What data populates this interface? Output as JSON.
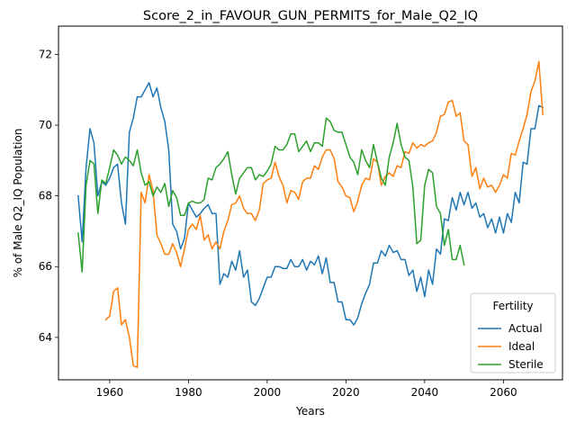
{
  "chart_data": {
    "type": "line",
    "title": "Score_2_in_FAVOUR_GUN_PERMITS_for_Male_Q2_IQ",
    "xlabel": "Years",
    "ylabel": "% of Male Q2_IQ Population",
    "xlim": [
      1947,
      2075
    ],
    "ylim": [
      62.8,
      72.8
    ],
    "xticks": [
      1960,
      1980,
      2000,
      2020,
      2040,
      2060
    ],
    "yticks": [
      64,
      66,
      68,
      70,
      72
    ],
    "grid": false,
    "legend": {
      "title": "Fertility",
      "placement": "lower-right"
    },
    "series": [
      {
        "name": "Actual",
        "color": "#1f77b4",
        "x": [
          1952,
          1953,
          1954,
          1955,
          1956,
          1957,
          1958,
          1959,
          1960,
          1961,
          1962,
          1963,
          1964,
          1965,
          1966,
          1967,
          1968,
          1969,
          1970,
          1971,
          1972,
          1973,
          1974,
          1975,
          1976,
          1977,
          1978,
          1979,
          1980,
          1981,
          1982,
          1983,
          1984,
          1985,
          1986,
          1987,
          1988,
          1989,
          1990,
          1991,
          1992,
          1993,
          1994,
          1995,
          1996,
          1997,
          1998,
          1999,
          2000,
          2001,
          2002,
          2003,
          2004,
          2005,
          2006,
          2007,
          2008,
          2009,
          2010,
          2011,
          2012,
          2013,
          2014,
          2015,
          2016,
          2017,
          2018,
          2019,
          2020,
          2021,
          2022,
          2023,
          2024,
          2025,
          2026,
          2027,
          2028,
          2029,
          2030,
          2031,
          2032,
          2033,
          2034,
          2035,
          2036,
          2037,
          2038,
          2039,
          2040,
          2041,
          2042,
          2043,
          2044,
          2045,
          2046,
          2047,
          2048,
          2049,
          2050,
          2051,
          2052,
          2053,
          2054,
          2055,
          2056,
          2057,
          2058,
          2059,
          2060,
          2061,
          2062,
          2063,
          2064,
          2065,
          2066,
          2067,
          2068,
          2069,
          2070
        ],
        "values": [
          68.0,
          66.7,
          68.8,
          69.9,
          69.5,
          68.0,
          68.4,
          68.3,
          68.5,
          68.8,
          68.9,
          67.8,
          67.2,
          69.8,
          70.2,
          70.8,
          70.8,
          71.0,
          71.2,
          70.8,
          71.05,
          70.5,
          70.1,
          69.3,
          67.2,
          67.0,
          66.5,
          66.8,
          67.8,
          67.6,
          67.4,
          67.5,
          67.65,
          67.75,
          67.5,
          67.5,
          65.5,
          65.8,
          65.7,
          66.15,
          65.9,
          66.45,
          65.7,
          65.9,
          65.0,
          64.9,
          65.1,
          65.4,
          65.7,
          65.7,
          66.0,
          66.0,
          65.95,
          65.95,
          66.2,
          66.0,
          66.0,
          66.2,
          65.9,
          66.15,
          66.05,
          66.3,
          65.8,
          66.25,
          65.55,
          65.55,
          65.0,
          65.0,
          64.5,
          64.5,
          64.35,
          64.55,
          64.95,
          65.25,
          65.5,
          66.1,
          66.1,
          66.45,
          66.3,
          66.6,
          66.4,
          66.45,
          66.2,
          66.2,
          65.75,
          65.9,
          65.3,
          65.7,
          65.15,
          65.9,
          65.5,
          66.5,
          66.35,
          67.35,
          67.3,
          67.95,
          67.6,
          68.1,
          67.75,
          68.1,
          67.65,
          67.8,
          67.4,
          67.5,
          67.1,
          67.35,
          66.95,
          67.4,
          66.95,
          67.5,
          67.25,
          68.1,
          67.8,
          68.95,
          68.9,
          69.9,
          69.9,
          70.55,
          70.5
        ]
      },
      {
        "name": "Ideal",
        "color": "#ff7f0e",
        "x": [
          1959,
          1960,
          1961,
          1962,
          1963,
          1964,
          1965,
          1966,
          1967,
          1968,
          1969,
          1970,
          1971,
          1972,
          1973,
          1974,
          1975,
          1976,
          1977,
          1978,
          1979,
          1980,
          1981,
          1982,
          1983,
          1984,
          1985,
          1986,
          1987,
          1988,
          1989,
          1990,
          1991,
          1992,
          1993,
          1994,
          1995,
          1996,
          1997,
          1998,
          1999,
          2000,
          2001,
          2002,
          2003,
          2004,
          2005,
          2006,
          2007,
          2008,
          2009,
          2010,
          2011,
          2012,
          2013,
          2014,
          2015,
          2016,
          2017,
          2018,
          2019,
          2020,
          2021,
          2022,
          2023,
          2024,
          2025,
          2026,
          2027,
          2028,
          2029,
          2030,
          2031,
          2032,
          2033,
          2034,
          2035,
          2036,
          2037,
          2038,
          2039,
          2040,
          2041,
          2042,
          2043,
          2044,
          2045,
          2046,
          2047,
          2048,
          2049,
          2050,
          2051,
          2052,
          2053,
          2054,
          2055,
          2056,
          2057,
          2058,
          2059,
          2060,
          2061,
          2062,
          2063,
          2064,
          2065,
          2066,
          2067,
          2068,
          2069,
          2070
        ],
        "values": [
          64.5,
          64.6,
          65.3,
          65.4,
          64.35,
          64.5,
          64.0,
          63.2,
          63.15,
          68.1,
          67.8,
          68.6,
          68.15,
          66.9,
          66.65,
          66.35,
          66.35,
          66.65,
          66.4,
          66.0,
          66.5,
          67.05,
          67.2,
          67.05,
          67.45,
          66.75,
          66.9,
          66.5,
          66.7,
          66.5,
          67.0,
          67.3,
          67.75,
          67.8,
          68.0,
          67.65,
          67.5,
          67.5,
          67.3,
          67.6,
          68.35,
          68.45,
          68.5,
          68.95,
          68.55,
          68.3,
          67.8,
          68.15,
          68.1,
          67.9,
          68.4,
          68.5,
          68.5,
          68.85,
          68.75,
          69.1,
          69.3,
          69.3,
          69.05,
          68.4,
          68.25,
          68.0,
          67.95,
          67.55,
          67.85,
          68.3,
          68.5,
          68.45,
          69.05,
          68.95,
          68.3,
          68.55,
          68.65,
          68.55,
          68.85,
          68.8,
          69.25,
          69.2,
          69.5,
          69.35,
          69.45,
          69.4,
          69.5,
          69.55,
          69.8,
          70.25,
          70.3,
          70.65,
          70.7,
          70.25,
          70.35,
          69.55,
          69.45,
          68.55,
          68.8,
          68.2,
          68.5,
          68.25,
          68.3,
          68.1,
          68.3,
          68.6,
          68.5,
          69.2,
          69.15,
          69.55,
          69.9,
          70.3,
          70.95,
          71.25,
          71.8,
          70.3
        ]
      },
      {
        "name": "Sterile",
        "color": "#2ca02c",
        "x": [
          1952,
          1953,
          1954,
          1955,
          1956,
          1957,
          1958,
          1959,
          1960,
          1961,
          1962,
          1963,
          1964,
          1965,
          1966,
          1967,
          1968,
          1969,
          1970,
          1971,
          1972,
          1973,
          1974,
          1975,
          1976,
          1977,
          1978,
          1979,
          1980,
          1981,
          1982,
          1983,
          1984,
          1985,
          1986,
          1987,
          1988,
          1989,
          1990,
          1991,
          1992,
          1993,
          1994,
          1995,
          1996,
          1997,
          1998,
          1999,
          2000,
          2001,
          2002,
          2003,
          2004,
          2005,
          2006,
          2007,
          2008,
          2009,
          2010,
          2011,
          2012,
          2013,
          2014,
          2015,
          2016,
          2017,
          2018,
          2019,
          2020,
          2021,
          2022,
          2023,
          2024,
          2025,
          2026,
          2027,
          2028,
          2029,
          2030,
          2031,
          2032,
          2033,
          2034,
          2035,
          2036,
          2037,
          2038,
          2039,
          2040,
          2041,
          2042,
          2043,
          2044,
          2045,
          2046,
          2047,
          2048,
          2049,
          2050
        ],
        "values": [
          66.95,
          65.85,
          68.3,
          69.0,
          68.9,
          67.5,
          68.45,
          68.35,
          68.8,
          69.3,
          69.15,
          68.9,
          69.1,
          69.0,
          68.85,
          69.3,
          68.65,
          68.3,
          68.4,
          68.0,
          68.25,
          68.1,
          68.35,
          67.7,
          68.15,
          67.95,
          67.45,
          67.45,
          67.8,
          67.85,
          67.8,
          67.8,
          67.9,
          68.5,
          68.45,
          68.8,
          68.9,
          69.05,
          69.25,
          68.6,
          68.05,
          68.5,
          68.65,
          68.8,
          68.8,
          68.45,
          68.6,
          68.55,
          68.7,
          68.9,
          69.4,
          69.3,
          69.3,
          69.45,
          69.75,
          69.75,
          69.25,
          69.4,
          69.55,
          69.25,
          69.5,
          69.5,
          69.4,
          70.2,
          70.1,
          69.85,
          69.8,
          69.8,
          69.45,
          69.1,
          68.95,
          68.6,
          69.3,
          69.0,
          68.8,
          69.45,
          68.95,
          68.5,
          68.3,
          69.1,
          69.5,
          70.05,
          69.45,
          69.1,
          69.0,
          68.25,
          66.65,
          66.75,
          68.3,
          68.75,
          68.65,
          67.7,
          67.5,
          66.6,
          67.05,
          66.2,
          66.2,
          66.6,
          66.05
        ]
      }
    ]
  }
}
